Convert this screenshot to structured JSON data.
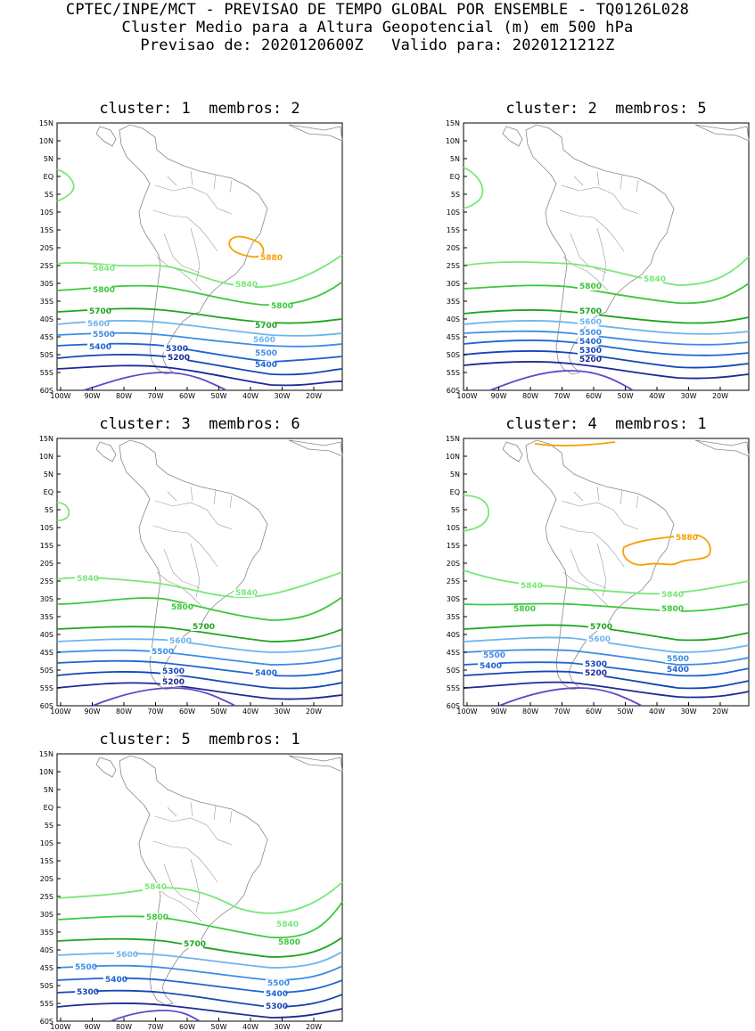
{
  "header": {
    "line1": "CPTEC/INPE/MCT - PREVISAO DE TEMPO GLOBAL POR ENSEMBLE - TQ0126L028",
    "line2": "Cluster Medio para a Altura Geopotencial (m) em 500 hPa",
    "line3": "Previsao de: 2020120600Z   Valido para: 2020121212Z"
  },
  "axes": {
    "lat_labels": [
      "15N",
      "10N",
      "5N",
      "EQ",
      "5S",
      "10S",
      "15S",
      "20S",
      "25S",
      "30S",
      "35S",
      "40S",
      "45S",
      "50S",
      "55S",
      "60S"
    ],
    "lon_labels": [
      "100W",
      "90W",
      "80W",
      "70W",
      "60W",
      "50W",
      "40W",
      "30W",
      "20W"
    ]
  },
  "contour_colors": {
    "5880": "#f5a000",
    "5840": "#78e878",
    "5800": "#3cc83c",
    "5700": "#1ea51e",
    "5600": "#6eb4ee",
    "5500": "#3c8ce6",
    "5400": "#1e64d2",
    "5300": "#1446b4",
    "5200": "#1e2896",
    "5100": "#6446c8"
  },
  "panels": [
    {
      "title": "cluster: 1  membros: 2",
      "labels": [
        "5880",
        "5840",
        "5840",
        "5800",
        "5800",
        "5700",
        "5700",
        "5600",
        "5600",
        "5500",
        "5500",
        "5400",
        "5400",
        "5300",
        "5200"
      ]
    },
    {
      "title": "cluster: 2  membros: 5",
      "labels": [
        "5840",
        "5800",
        "5700",
        "5600",
        "5500",
        "5400",
        "5300",
        "5200"
      ]
    },
    {
      "title": "cluster: 3  membros: 6",
      "labels": [
        "5840",
        "5840",
        "5800",
        "5700",
        "5600",
        "5500",
        "5300",
        "5400",
        "5200"
      ]
    },
    {
      "title": "cluster: 4  membros: 1",
      "labels": [
        "5880",
        "5840",
        "5840",
        "5800",
        "5800",
        "5700",
        "5600",
        "5500",
        "5500",
        "5400",
        "5400",
        "5300",
        "5200"
      ]
    },
    {
      "title": "cluster: 5  membros: 1",
      "labels": [
        "5840",
        "5840",
        "5800",
        "5800",
        "5700",
        "5600",
        "5500",
        "5500",
        "5400",
        "5400",
        "5300",
        "5300"
      ]
    }
  ]
}
